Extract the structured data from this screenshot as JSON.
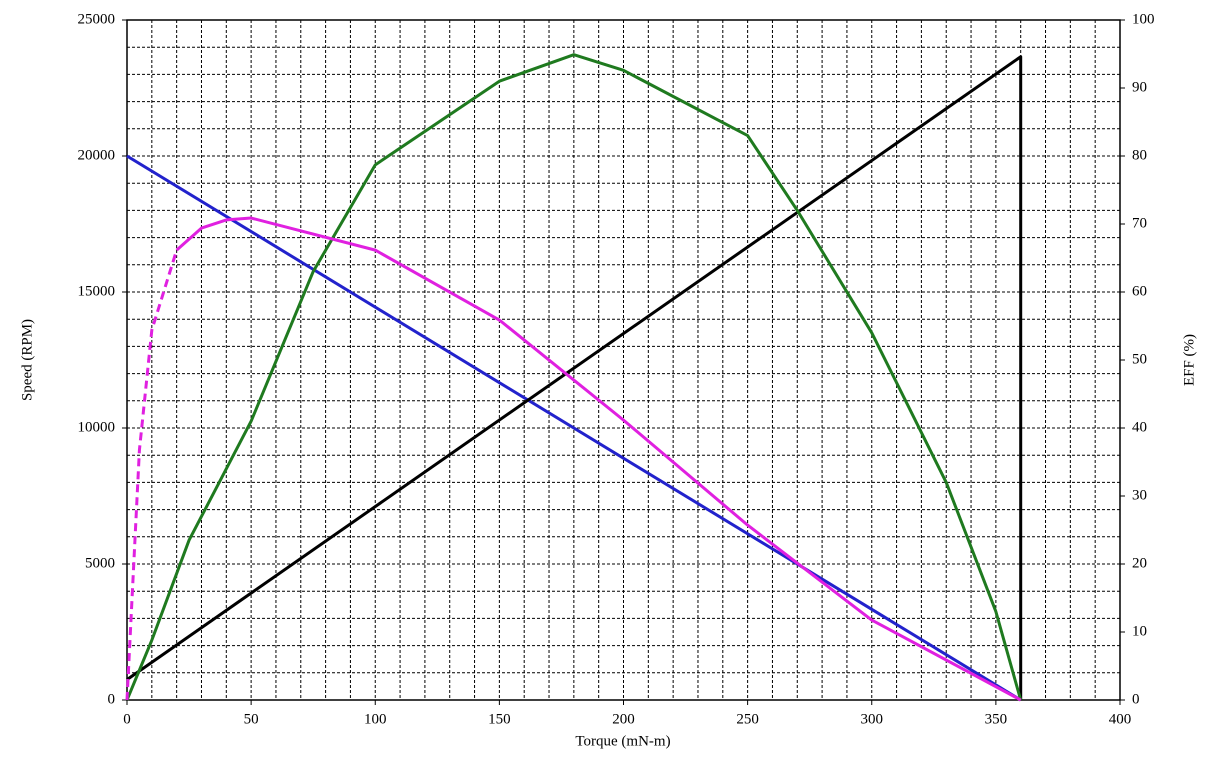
{
  "chart_data": {
    "type": "line",
    "x_label": "Torque (mN-m)",
    "y_label": "Speed (RPM)",
    "y2_label": "EFF (%)",
    "xlim": [
      0,
      400
    ],
    "xticks": [
      0,
      50,
      100,
      150,
      200,
      250,
      300,
      350,
      400
    ],
    "ylim": [
      0,
      25000
    ],
    "yticks": [
      0,
      5000,
      10000,
      15000,
      20000,
      25000
    ],
    "y2lim": [
      0,
      100
    ],
    "y2ticks": [
      0,
      10,
      20,
      30,
      40,
      50,
      60,
      70,
      80,
      90,
      100
    ],
    "grid": true,
    "minor_grid": {
      "x": 10,
      "y": 1000
    },
    "series": [
      {
        "color": "#2222cc",
        "x": [
          0,
          360
        ],
        "values": [
          20000,
          0
        ]
      },
      {
        "color": "#000000",
        "x": [
          0,
          360,
          360
        ],
        "values": [
          750,
          23650,
          0
        ]
      },
      {
        "color": "#1f7a1f",
        "axis": "y2",
        "x": [
          0,
          10,
          25,
          50,
          75,
          100,
          150,
          180,
          200,
          250,
          270,
          300,
          330,
          350,
          360
        ],
        "values": [
          0,
          8.8,
          23.5,
          41,
          63,
          78.7,
          91,
          94.9,
          92.6,
          83,
          72,
          54,
          32,
          13,
          0
        ]
      },
      {
        "color": "#e020e0",
        "dash": true,
        "x": [
          0,
          5,
          10,
          20
        ],
        "values": [
          0,
          9190,
          13600,
          16540
        ]
      },
      {
        "color": "#e020e0",
        "x": [
          20,
          30,
          40,
          50,
          100,
          150,
          200,
          250,
          300,
          360
        ],
        "values": [
          16540,
          17350,
          17650,
          17720,
          16540,
          13970,
          10290,
          6430,
          2940,
          0
        ]
      }
    ]
  }
}
